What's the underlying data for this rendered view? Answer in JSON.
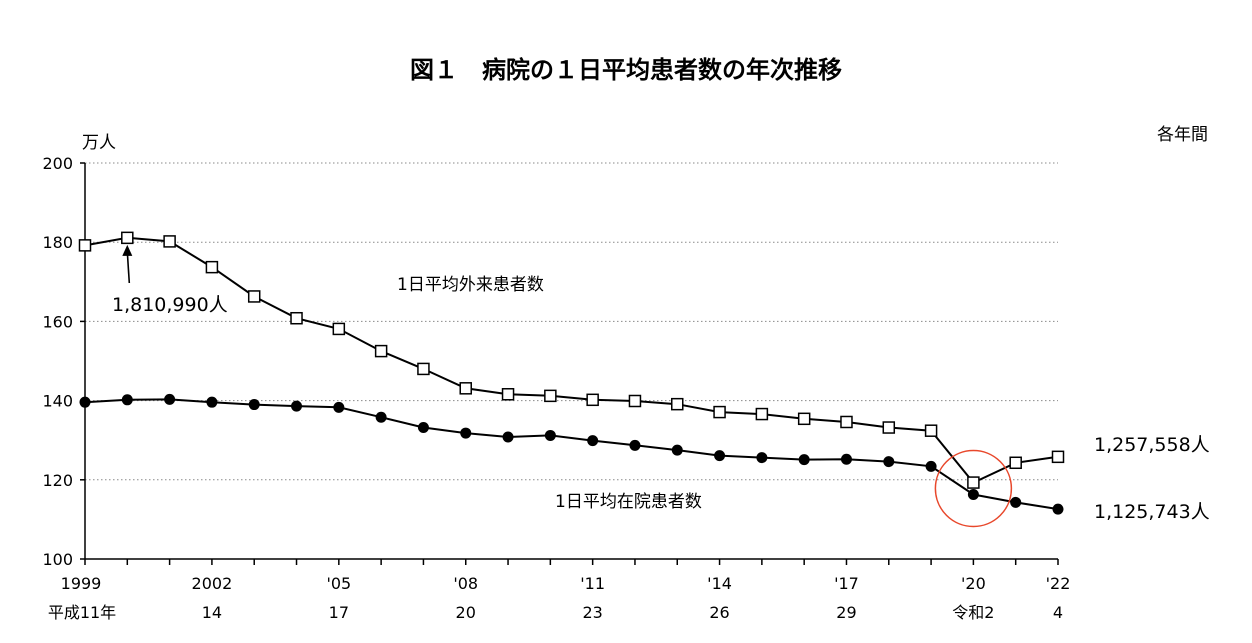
{
  "chart_data": {
    "type": "line",
    "title": "図１　病院の１日平均患者数の年次推移",
    "ylabel": "万人",
    "note": "各年間",
    "ylim": [
      100,
      200
    ],
    "yticks": [
      100,
      120,
      140,
      160,
      180,
      200
    ],
    "grid": true,
    "x": [
      1999,
      2000,
      2001,
      2002,
      2003,
      2004,
      2005,
      2006,
      2007,
      2008,
      2009,
      2010,
      2011,
      2012,
      2013,
      2014,
      2015,
      2016,
      2017,
      2018,
      2019,
      2020,
      2021,
      2022
    ],
    "x_tick_labels": [
      {
        "year": 1999,
        "top": "1999",
        "bottom": "平成11年"
      },
      {
        "year": 2002,
        "top": "2002",
        "bottom": "14"
      },
      {
        "year": 2005,
        "top": "'05",
        "bottom": "17"
      },
      {
        "year": 2008,
        "top": "'08",
        "bottom": "20"
      },
      {
        "year": 2011,
        "top": "'11",
        "bottom": "23"
      },
      {
        "year": 2014,
        "top": "'14",
        "bottom": "26"
      },
      {
        "year": 2017,
        "top": "'17",
        "bottom": "29"
      },
      {
        "year": 2020,
        "top": "'20",
        "bottom": "令和2"
      },
      {
        "year": 2022,
        "top": "'22",
        "bottom": "4"
      }
    ],
    "series": [
      {
        "name": "1日平均外来患者数",
        "marker": "open-square",
        "values": [
          179.2,
          181.1,
          180.2,
          173.7,
          166.3,
          160.8,
          158.1,
          152.5,
          148.0,
          143.1,
          141.6,
          141.2,
          140.2,
          139.9,
          139.1,
          137.1,
          136.6,
          135.4,
          134.6,
          133.2,
          132.4,
          119.3,
          124.3,
          125.8
        ]
      },
      {
        "name": "1日平均在院患者数",
        "marker": "filled-circle",
        "values": [
          139.6,
          140.2,
          140.3,
          139.6,
          139.0,
          138.6,
          138.3,
          135.8,
          133.2,
          131.8,
          130.8,
          131.2,
          129.9,
          128.7,
          127.5,
          126.1,
          125.6,
          125.1,
          125.2,
          124.6,
          123.4,
          116.3,
          114.3,
          112.6
        ]
      }
    ],
    "annotations": [
      {
        "text": "1,810,990人",
        "target_year": 2000,
        "series": "1日平均外来患者数"
      },
      {
        "text": "1,257,558人",
        "target_year": 2022,
        "series": "1日平均外来患者数"
      },
      {
        "text": "1,125,743人",
        "target_year": 2022,
        "series": "1日平均在院患者数"
      }
    ],
    "highlight": {
      "year": 2020,
      "color": "#e8472b"
    }
  }
}
